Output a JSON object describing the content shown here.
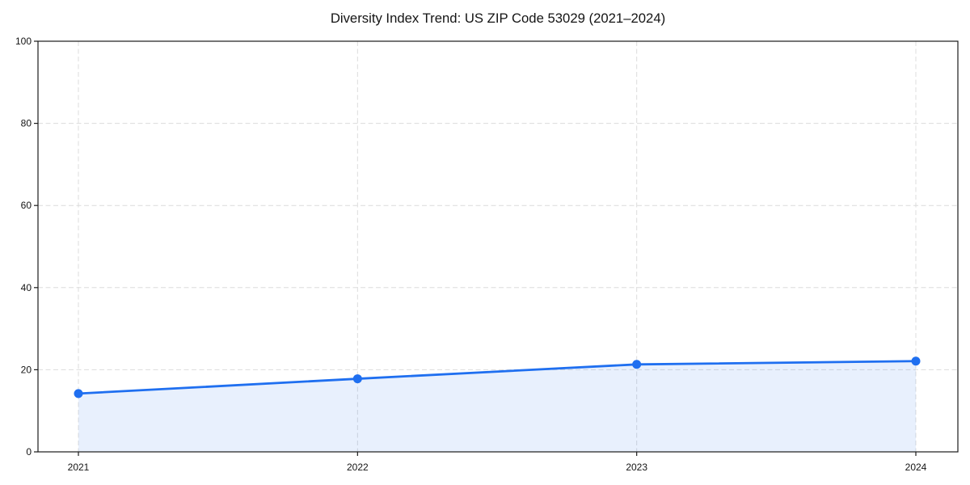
{
  "chart_data": {
    "type": "line",
    "title": "Diversity Index Trend: US ZIP Code 53029 (2021–2024)",
    "categories": [
      "2021",
      "2022",
      "2023",
      "2024"
    ],
    "series": [
      {
        "name": "Diversity Index",
        "values": [
          14.2,
          17.8,
          21.3,
          22.1
        ]
      }
    ],
    "xlabel": "",
    "ylabel": "",
    "ylim": [
      0,
      100
    ],
    "yticks": [
      0,
      20,
      40,
      60,
      80,
      100
    ],
    "grid": true,
    "grid_line_style": "dashed",
    "legend_position": "none",
    "marker": "circle",
    "colors": {
      "line": "#1f6ff0",
      "marker": "#1f6ff0",
      "fill": "#1f6ff0",
      "fill_opacity": 0.1,
      "grid": "#dcdcdc",
      "spine": "#1a1a1a",
      "text": "#141414"
    }
  }
}
